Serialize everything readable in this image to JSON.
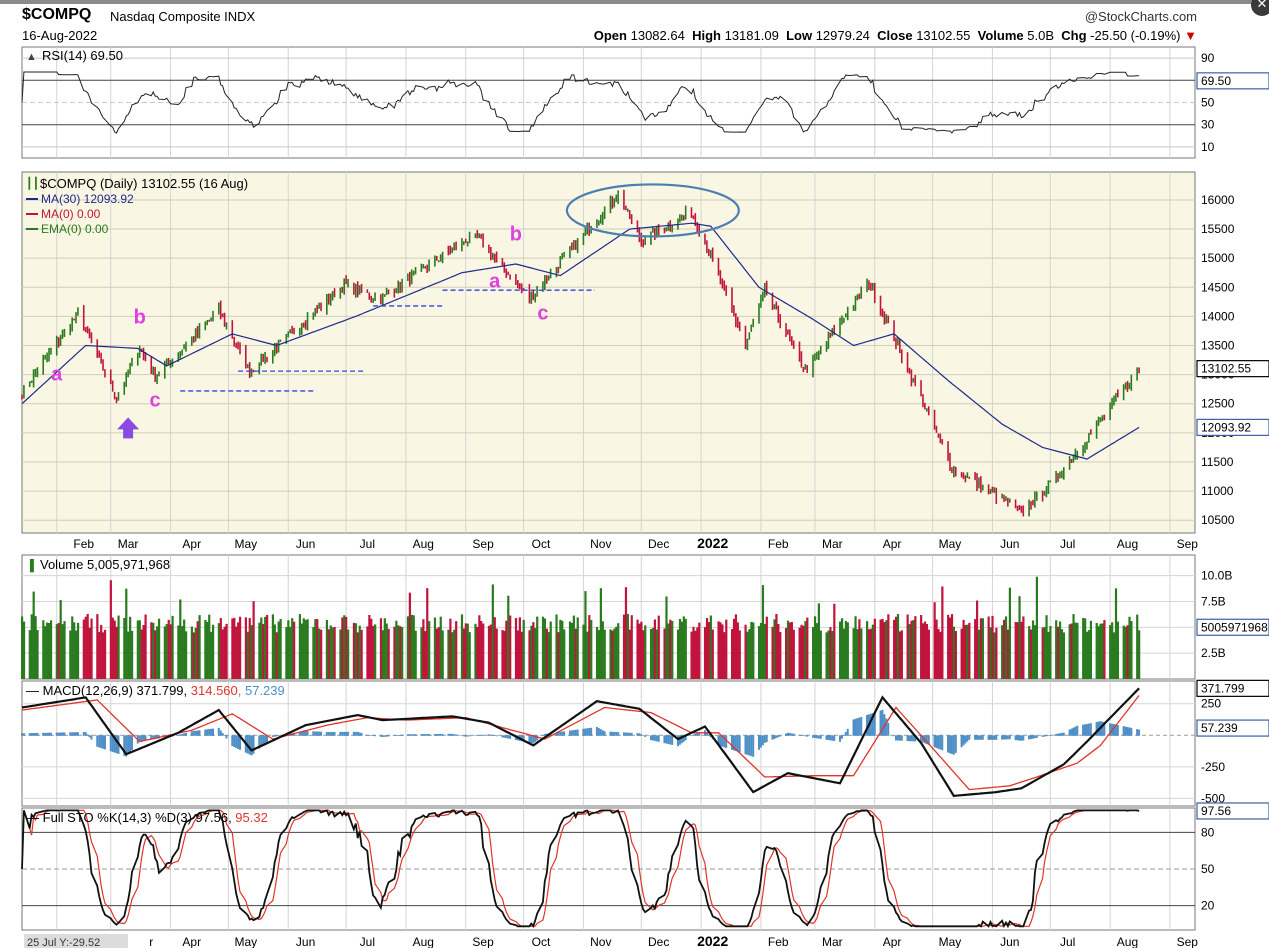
{
  "header": {
    "symbol": "$COMPQ",
    "name": "Nasdaq Composite INDX",
    "date": "16-Aug-2022",
    "brand": "@StockCharts.com",
    "open_label": "Open",
    "open": "13082.64",
    "high_label": "High",
    "high": "13181.09",
    "low_label": "Low",
    "low": "12979.24",
    "close_label": "Close",
    "close": "13102.55",
    "volume_label": "Volume",
    "volume": "5.0B",
    "chg_label": "Chg",
    "chg": "-25.50 (-0.19%)",
    "chg_arrow": "▼"
  },
  "footer": {
    "cursor": "25 Jul Y:-29.52"
  },
  "colors": {
    "up": "#2a7a1f",
    "down": "#c0143c",
    "ma": "#1e2a8c",
    "panel_bg": "#f9f7e3",
    "macd_signal": "#e0352b",
    "histogram": "#4f8fc7",
    "annotation": "#e040e0",
    "arrow": "#8a4be0",
    "circle": "#4a7fb0"
  },
  "x_axis": {
    "labels_top": [
      "Feb",
      "Mar",
      "Apr",
      "May",
      "Jun",
      "Jul",
      "Aug",
      "Sep",
      "Oct",
      "Nov",
      "Dec",
      "2022",
      "Feb",
      "Mar",
      "Apr",
      "May",
      "Jun",
      "Jul",
      "Aug",
      "Sep"
    ],
    "labels_bottom": [
      "r",
      "Apr",
      "May",
      "Jun",
      "Jul",
      "Aug",
      "Sep",
      "Oct",
      "Nov",
      "Dec",
      "2022",
      "Feb",
      "Mar",
      "Apr",
      "May",
      "Jun",
      "Jul",
      "Aug",
      "Sep"
    ]
  },
  "chart_data": [
    {
      "type": "line",
      "title": "RSI(14) 69.50",
      "y_ticks": [
        "90",
        "70",
        "50",
        "30",
        "10"
      ],
      "y_ticks_values": [
        90,
        70,
        50,
        30,
        10
      ],
      "last_value": "69.50",
      "ylim": [
        0,
        100
      ],
      "reference_lines": [
        70,
        50,
        30
      ]
    },
    {
      "type": "candlestick",
      "title": "$COMPQ (Daily) 13102.55 (16 Aug)",
      "legend": [
        "MA(30) 12093.92",
        "MA(0) 0.00",
        "EMA(0) 0.00"
      ],
      "y_ticks": [
        "16000",
        "15500",
        "15000",
        "14500",
        "14000",
        "13500",
        "13000",
        "12500",
        "12000",
        "11500",
        "11000",
        "10500"
      ],
      "y_ticks_values": [
        16000,
        15500,
        15000,
        14500,
        14000,
        13500,
        13000,
        12500,
        12000,
        11500,
        11000,
        10500
      ],
      "ylim": [
        10280,
        16480
      ],
      "price_label": "13102.55",
      "ma_label": "12093.92",
      "x_range": [
        "2021-01-14",
        "2022-09-14"
      ],
      "price_keypoints": [
        [
          "2021-01-14",
          12700
        ],
        [
          "2021-02-12",
          14050
        ],
        [
          "2021-03-04",
          12600
        ],
        [
          "2021-03-16",
          13450
        ],
        [
          "2021-03-24",
          12950
        ],
        [
          "2021-04-26",
          14100
        ],
        [
          "2021-05-12",
          13050
        ],
        [
          "2021-06-30",
          14550
        ],
        [
          "2021-07-19",
          14300
        ],
        [
          "2021-08-31",
          15300
        ],
        [
          "2021-09-07",
          15350
        ],
        [
          "2021-10-04",
          14300
        ],
        [
          "2021-11-19",
          16100
        ],
        [
          "2021-12-01",
          15300
        ],
        [
          "2021-12-27",
          15800
        ],
        [
          "2022-01-05",
          15100
        ],
        [
          "2022-01-24",
          13500
        ],
        [
          "2022-02-03",
          14450
        ],
        [
          "2022-02-24",
          13050
        ],
        [
          "2022-03-29",
          14600
        ],
        [
          "2022-05-11",
          11400
        ],
        [
          "2022-06-16",
          10650
        ],
        [
          "2022-07-01",
          11100
        ],
        [
          "2022-07-20",
          11900
        ],
        [
          "2022-08-16",
          13100
        ]
      ],
      "ma_keypoints": [
        [
          "2021-01-14",
          12500
        ],
        [
          "2021-02-16",
          13500
        ],
        [
          "2021-03-15",
          13450
        ],
        [
          "2021-03-30",
          13150
        ],
        [
          "2021-05-03",
          13700
        ],
        [
          "2021-05-26",
          13500
        ],
        [
          "2021-07-06",
          14000
        ],
        [
          "2021-08-30",
          14750
        ],
        [
          "2021-09-27",
          14900
        ],
        [
          "2021-10-20",
          14700
        ],
        [
          "2021-11-25",
          15500
        ],
        [
          "2021-12-27",
          15600
        ],
        [
          "2022-01-06",
          15550
        ],
        [
          "2022-01-31",
          14500
        ],
        [
          "2022-02-28",
          13950
        ],
        [
          "2022-03-21",
          13500
        ],
        [
          "2022-04-11",
          13700
        ],
        [
          "2022-05-09",
          12900
        ],
        [
          "2022-06-06",
          12150
        ],
        [
          "2022-06-27",
          11750
        ],
        [
          "2022-07-20",
          11550
        ],
        [
          "2022-08-16",
          12093
        ]
      ],
      "annotations": [
        {
          "text": "a",
          "x": "2021-02-01",
          "y": 12900
        },
        {
          "text": "b",
          "x": "2021-03-16",
          "y": 13880
        },
        {
          "text": "c",
          "x": "2021-03-24",
          "y": 12450
        },
        {
          "text": "a",
          "x": "2021-09-16",
          "y": 14500
        },
        {
          "text": "b",
          "x": "2021-09-27",
          "y": 15300
        },
        {
          "text": "c",
          "x": "2021-10-11",
          "y": 13950
        }
      ],
      "support_lines": [
        {
          "from": "2021-04-06",
          "to": "2021-06-15",
          "y": 12720
        },
        {
          "from": "2021-05-06",
          "to": "2021-07-10",
          "y": 13060
        },
        {
          "from": "2021-07-15",
          "to": "2021-08-21",
          "y": 14180
        },
        {
          "from": "2021-08-20",
          "to": "2021-11-07",
          "y": 14450
        }
      ],
      "highlight_ellipse": {
        "center_x": "2021-12-07",
        "center_y": 15820,
        "note": "top region"
      },
      "arrow": {
        "x": "2021-03-10",
        "y": 12300
      }
    },
    {
      "type": "bar",
      "title": "Volume 5,005,971,968",
      "y_ticks": [
        "10.0B",
        "7.5B",
        "5.0B",
        "2.5B"
      ],
      "y_ticks_values": [
        10.0,
        7.5,
        5.0,
        2.5
      ],
      "unit": "billion shares",
      "ylim": [
        0,
        12
      ],
      "last_value": "5005971968",
      "typical_range": [
        4.5,
        7.5
      ],
      "peak": {
        "x": "2022-06-24",
        "value": 9.9
      }
    },
    {
      "type": "line",
      "title": "MACD(12,26,9) 371.799, 314.560, 57.239",
      "title_parts": [
        "MACD(12,26,9) 371.799, ",
        "314.560",
        ", 57.239"
      ],
      "y_ticks": [
        "250",
        "-250",
        "-500"
      ],
      "y_ticks_values": [
        250,
        -250,
        -500
      ],
      "ylim": [
        -560,
        430
      ],
      "series": [
        {
          "name": "MACD",
          "last": "371.799"
        },
        {
          "name": "Signal",
          "last": "314.560"
        },
        {
          "name": "Histogram",
          "last": "57.239"
        }
      ],
      "macd_keypoints": [
        [
          "2021-01-14",
          220
        ],
        [
          "2021-02-16",
          300
        ],
        [
          "2021-03-09",
          -150
        ],
        [
          "2021-04-05",
          20
        ],
        [
          "2021-04-26",
          200
        ],
        [
          "2021-05-13",
          -120
        ],
        [
          "2021-06-10",
          80
        ],
        [
          "2021-07-07",
          160
        ],
        [
          "2021-07-20",
          120
        ],
        [
          "2021-08-25",
          150
        ],
        [
          "2021-09-13",
          100
        ],
        [
          "2021-10-06",
          -80
        ],
        [
          "2021-11-08",
          270
        ],
        [
          "2021-11-30",
          210
        ],
        [
          "2021-12-20",
          -30
        ],
        [
          "2022-01-03",
          70
        ],
        [
          "2022-01-28",
          -450
        ],
        [
          "2022-02-15",
          -300
        ],
        [
          "2022-03-14",
          -380
        ],
        [
          "2022-04-05",
          300
        ],
        [
          "2022-04-25",
          -60
        ],
        [
          "2022-05-12",
          -480
        ],
        [
          "2022-06-03",
          -450
        ],
        [
          "2022-06-16",
          -420
        ],
        [
          "2022-07-08",
          -230
        ],
        [
          "2022-07-20",
          -50
        ],
        [
          "2022-08-16",
          372
        ]
      ],
      "signal_keypoints": [
        [
          "2021-01-14",
          200
        ],
        [
          "2021-02-22",
          280
        ],
        [
          "2021-03-16",
          -50
        ],
        [
          "2021-04-12",
          40
        ],
        [
          "2021-05-03",
          170
        ],
        [
          "2021-05-24",
          -30
        ],
        [
          "2021-06-21",
          80
        ],
        [
          "2021-07-12",
          140
        ],
        [
          "2021-08-01",
          120
        ],
        [
          "2021-09-01",
          140
        ],
        [
          "2021-10-12",
          -30
        ],
        [
          "2021-11-12",
          220
        ],
        [
          "2021-12-06",
          180
        ],
        [
          "2021-12-27",
          20
        ],
        [
          "2022-01-10",
          20
        ],
        [
          "2022-02-03",
          -330
        ],
        [
          "2022-03-01",
          -320
        ],
        [
          "2022-03-21",
          -320
        ],
        [
          "2022-04-12",
          220
        ],
        [
          "2022-05-02",
          -120
        ],
        [
          "2022-05-20",
          -430
        ],
        [
          "2022-06-10",
          -400
        ],
        [
          "2022-06-24",
          -330
        ],
        [
          "2022-07-15",
          -220
        ],
        [
          "2022-07-27",
          -80
        ],
        [
          "2022-08-16",
          315
        ]
      ]
    },
    {
      "type": "line",
      "title": "Full STO %K(14,3) %D(3) 97.56, 95.32",
      "title_parts": [
        "Full STO %K(14,3) %D(3) 97.56, ",
        "95.32"
      ],
      "y_ticks": [
        "80",
        "50",
        "20"
      ],
      "y_ticks_values": [
        80,
        50,
        20
      ],
      "ylim": [
        0,
        100
      ],
      "reference_lines": [
        80,
        50,
        20
      ],
      "last_value": "97.56",
      "series": [
        {
          "name": "%K",
          "last": "97.56"
        },
        {
          "name": "%D",
          "last": "95.32"
        }
      ]
    }
  ]
}
